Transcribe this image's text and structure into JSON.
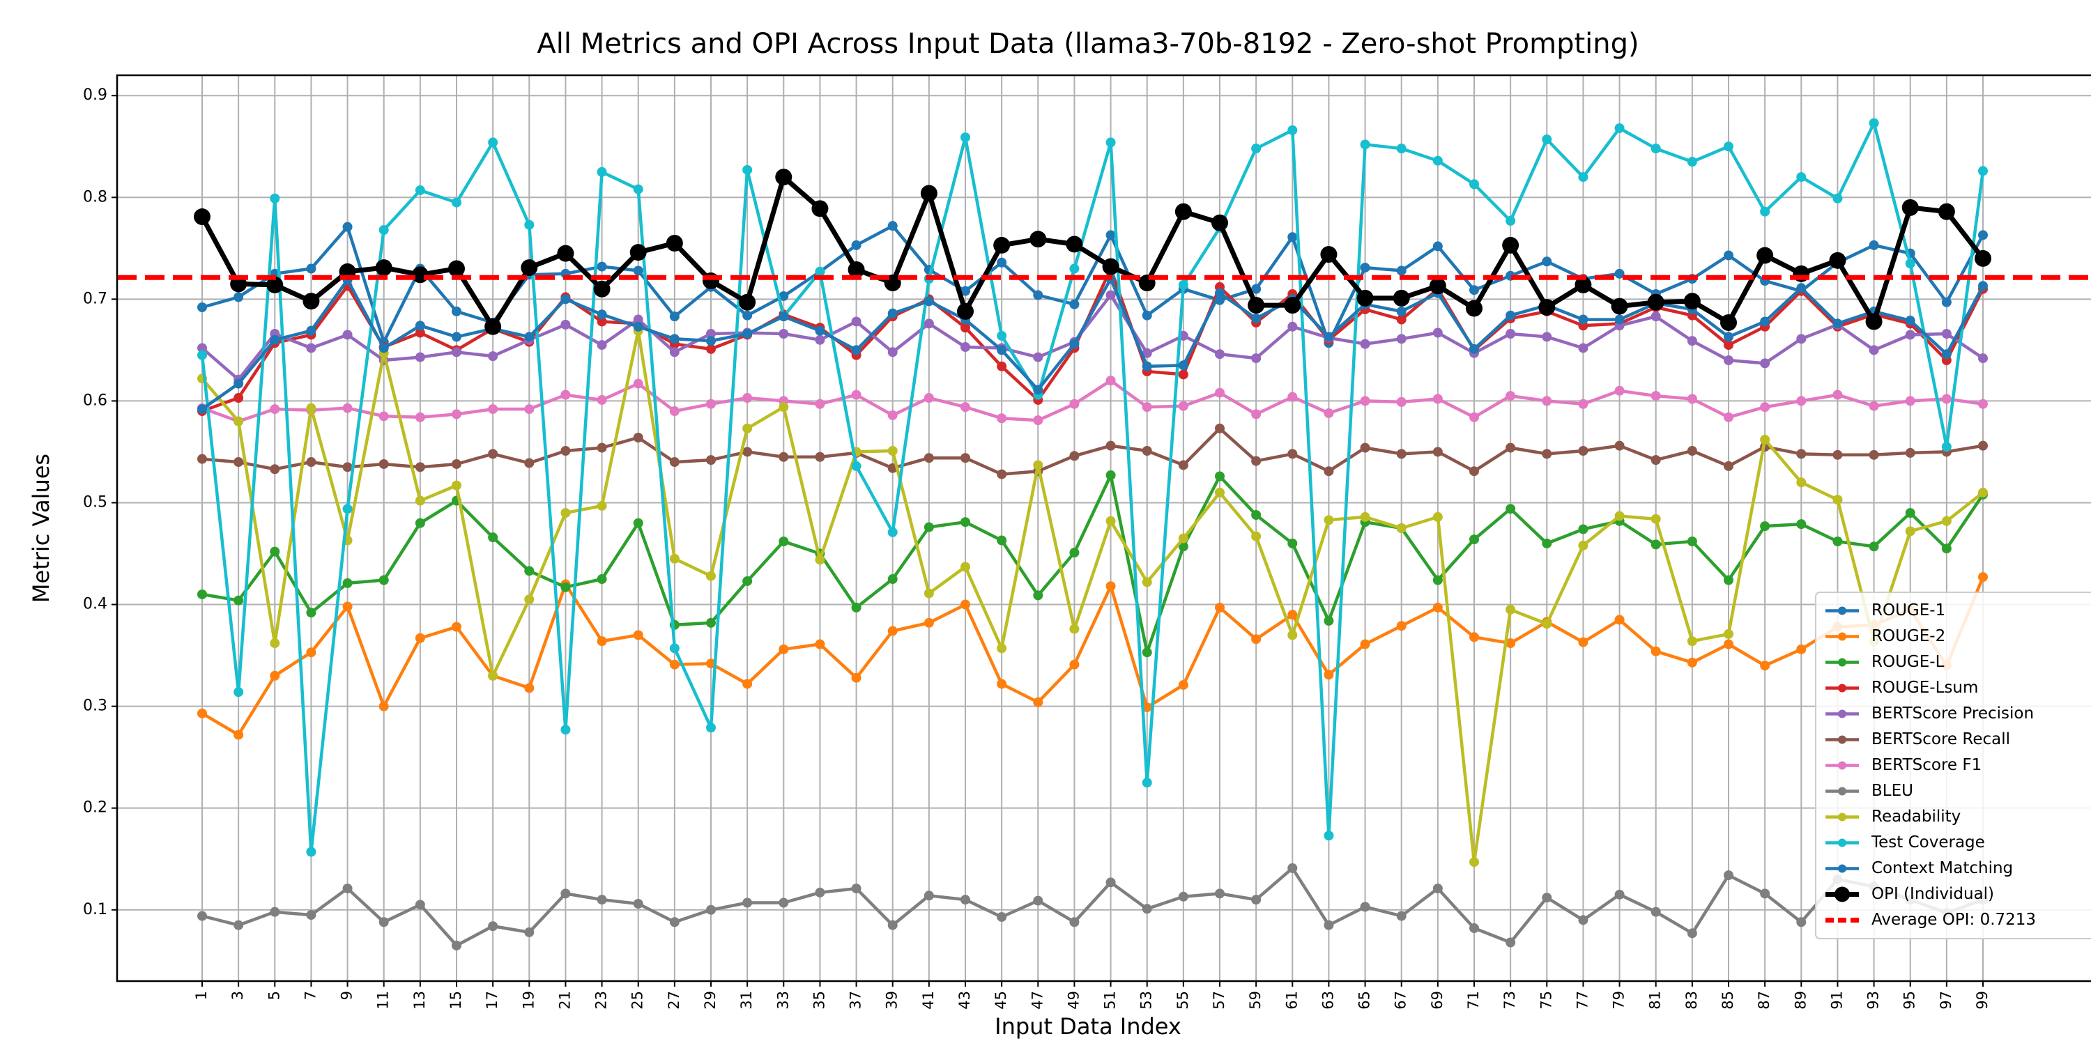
{
  "chart_data": {
    "type": "line",
    "title": "All Metrics and OPI Across Input Data (llama3-70b-8192 - Zero-shot Prompting)",
    "xlabel": "Input Data Index",
    "ylabel": "Metric Values",
    "x": [
      1,
      3,
      5,
      7,
      9,
      11,
      13,
      15,
      17,
      19,
      21,
      23,
      25,
      27,
      29,
      31,
      33,
      35,
      37,
      39,
      41,
      43,
      45,
      47,
      49,
      51,
      53,
      55,
      57,
      59,
      61,
      63,
      65,
      67,
      69,
      71,
      73,
      75,
      77,
      79,
      81,
      83,
      85,
      87,
      89,
      91,
      93,
      95,
      97,
      99
    ],
    "ylim": [
      0.03,
      0.92
    ],
    "yticks": [
      0.1,
      0.2,
      0.3,
      0.4,
      0.5,
      0.6,
      0.7,
      0.8,
      0.9
    ],
    "grid": true,
    "legend_position": "lower-right",
    "series": [
      {
        "name": "ROUGE-1",
        "color": "#1f77b4",
        "values": [
          0.692,
          0.702,
          0.725,
          0.73,
          0.771,
          0.658,
          0.73,
          0.688,
          0.677,
          0.724,
          0.725,
          0.732,
          0.728,
          0.683,
          0.712,
          0.684,
          0.703,
          0.727,
          0.753,
          0.772,
          0.729,
          0.708,
          0.736,
          0.704,
          0.695,
          0.763,
          0.684,
          0.71,
          0.699,
          0.71,
          0.761,
          0.657,
          0.731,
          0.728,
          0.752,
          0.709,
          0.723,
          0.737,
          0.72,
          0.725,
          0.705,
          0.72,
          0.743,
          0.718,
          0.708,
          0.736,
          0.753,
          0.745,
          0.697,
          0.763
        ]
      },
      {
        "name": "ROUGE-2",
        "color": "#ff7f0e",
        "values": [
          0.293,
          0.272,
          0.33,
          0.353,
          0.398,
          0.3,
          0.367,
          0.378,
          0.33,
          0.318,
          0.42,
          0.364,
          0.37,
          0.341,
          0.342,
          0.322,
          0.356,
          0.361,
          0.328,
          0.374,
          0.382,
          0.4,
          0.322,
          0.304,
          0.341,
          0.418,
          0.299,
          0.321,
          0.397,
          0.366,
          0.39,
          0.331,
          0.361,
          0.379,
          0.397,
          0.368,
          0.362,
          0.383,
          0.363,
          0.385,
          0.354,
          0.343,
          0.361,
          0.34,
          0.356,
          0.378,
          0.38,
          0.395,
          0.34,
          0.427
        ]
      },
      {
        "name": "ROUGE-L",
        "color": "#2ca02c",
        "values": [
          0.41,
          0.404,
          0.452,
          0.392,
          0.421,
          0.424,
          0.48,
          0.502,
          0.466,
          0.433,
          0.417,
          0.425,
          0.48,
          0.38,
          0.382,
          0.423,
          0.462,
          0.45,
          0.397,
          0.425,
          0.476,
          0.481,
          0.463,
          0.409,
          0.451,
          0.527,
          0.353,
          0.457,
          0.526,
          0.488,
          0.46,
          0.384,
          0.481,
          0.475,
          0.424,
          0.464,
          0.494,
          0.46,
          0.474,
          0.482,
          0.459,
          0.462,
          0.424,
          0.477,
          0.479,
          0.462,
          0.457,
          0.49,
          0.455,
          0.508
        ]
      },
      {
        "name": "ROUGE-Lsum",
        "color": "#d62728",
        "values": [
          0.59,
          0.603,
          0.657,
          0.665,
          0.713,
          0.653,
          0.667,
          0.65,
          0.671,
          0.658,
          0.702,
          0.678,
          0.676,
          0.656,
          0.651,
          0.665,
          0.685,
          0.672,
          0.645,
          0.683,
          0.7,
          0.672,
          0.634,
          0.601,
          0.652,
          0.73,
          0.629,
          0.626,
          0.712,
          0.677,
          0.705,
          0.66,
          0.69,
          0.68,
          0.71,
          0.65,
          0.681,
          0.688,
          0.674,
          0.676,
          0.692,
          0.684,
          0.655,
          0.673,
          0.708,
          0.673,
          0.685,
          0.676,
          0.64,
          0.71
        ]
      },
      {
        "name": "BERTScore Precision",
        "color": "#9467bd",
        "values": [
          0.652,
          0.621,
          0.666,
          0.652,
          0.665,
          0.64,
          0.643,
          0.648,
          0.644,
          0.66,
          0.675,
          0.655,
          0.68,
          0.648,
          0.666,
          0.667,
          0.666,
          0.66,
          0.678,
          0.648,
          0.676,
          0.653,
          0.652,
          0.643,
          0.658,
          0.704,
          0.647,
          0.664,
          0.646,
          0.642,
          0.673,
          0.662,
          0.656,
          0.661,
          0.667,
          0.647,
          0.666,
          0.663,
          0.652,
          0.674,
          0.683,
          0.659,
          0.64,
          0.637,
          0.661,
          0.675,
          0.65,
          0.665,
          0.666,
          0.642
        ]
      },
      {
        "name": "BERTScore Recall",
        "color": "#8c564b",
        "values": [
          0.543,
          0.54,
          0.533,
          0.54,
          0.535,
          0.538,
          0.535,
          0.538,
          0.548,
          0.539,
          0.551,
          0.554,
          0.564,
          0.54,
          0.542,
          0.55,
          0.545,
          0.545,
          0.549,
          0.534,
          0.544,
          0.544,
          0.528,
          0.531,
          0.546,
          0.556,
          0.551,
          0.537,
          0.573,
          0.541,
          0.548,
          0.531,
          0.554,
          0.548,
          0.55,
          0.531,
          0.554,
          0.548,
          0.551,
          0.556,
          0.542,
          0.551,
          0.536,
          0.555,
          0.548,
          0.547,
          0.547,
          0.549,
          0.55,
          0.556
        ]
      },
      {
        "name": "BERTScore F1",
        "color": "#e377c2",
        "values": [
          0.593,
          0.58,
          0.592,
          0.591,
          0.593,
          0.585,
          0.584,
          0.587,
          0.592,
          0.592,
          0.606,
          0.601,
          0.617,
          0.59,
          0.597,
          0.603,
          0.6,
          0.597,
          0.606,
          0.586,
          0.603,
          0.594,
          0.583,
          0.581,
          0.597,
          0.62,
          0.594,
          0.595,
          0.608,
          0.587,
          0.604,
          0.588,
          0.6,
          0.599,
          0.602,
          0.584,
          0.605,
          0.6,
          0.597,
          0.61,
          0.605,
          0.602,
          0.584,
          0.594,
          0.6,
          0.606,
          0.595,
          0.6,
          0.602,
          0.597
        ]
      },
      {
        "name": "BLEU",
        "color": "#7f7f7f",
        "values": [
          0.094,
          0.085,
          0.098,
          0.095,
          0.121,
          0.088,
          0.105,
          0.065,
          0.084,
          0.078,
          0.116,
          0.11,
          0.106,
          0.088,
          0.1,
          0.107,
          0.107,
          0.117,
          0.121,
          0.085,
          0.114,
          0.11,
          0.093,
          0.109,
          0.088,
          0.127,
          0.101,
          0.113,
          0.116,
          0.11,
          0.141,
          0.085,
          0.103,
          0.094,
          0.121,
          0.082,
          0.068,
          0.112,
          0.09,
          0.115,
          0.098,
          0.077,
          0.134,
          0.116,
          0.088,
          0.13,
          0.123,
          0.11,
          0.097,
          0.11
        ]
      },
      {
        "name": "Readability",
        "color": "#bcbd22",
        "values": [
          0.622,
          0.58,
          0.362,
          0.593,
          0.463,
          0.647,
          0.502,
          0.517,
          0.33,
          0.405,
          0.49,
          0.497,
          0.669,
          0.445,
          0.428,
          0.573,
          0.594,
          0.444,
          0.55,
          0.551,
          0.411,
          0.437,
          0.357,
          0.537,
          0.376,
          0.482,
          0.422,
          0.465,
          0.51,
          0.467,
          0.37,
          0.483,
          0.486,
          0.475,
          0.486,
          0.147,
          0.395,
          0.381,
          0.458,
          0.487,
          0.484,
          0.364,
          0.371,
          0.562,
          0.52,
          0.503,
          0.364,
          0.472,
          0.482,
          0.51
        ]
      },
      {
        "name": "Test Coverage",
        "color": "#17becf",
        "values": [
          0.645,
          0.314,
          0.799,
          0.157,
          0.494,
          0.768,
          0.807,
          0.795,
          0.854,
          0.773,
          0.277,
          0.825,
          0.808,
          0.357,
          0.279,
          0.827,
          0.683,
          0.727,
          0.536,
          0.471,
          0.72,
          0.859,
          0.664,
          0.606,
          0.73,
          0.854,
          0.225,
          0.714,
          0.77,
          0.848,
          0.866,
          0.173,
          0.852,
          0.848,
          0.836,
          0.813,
          0.777,
          0.857,
          0.82,
          0.868,
          0.848,
          0.835,
          0.85,
          0.786,
          0.82,
          0.799,
          0.873,
          0.735,
          0.555,
          0.826
        ]
      },
      {
        "name": "Context Matching",
        "color": "#1f77b4",
        "values": [
          0.592,
          0.617,
          0.66,
          0.669,
          0.719,
          0.652,
          0.674,
          0.663,
          0.671,
          0.663,
          0.7,
          0.685,
          0.673,
          0.661,
          0.659,
          0.666,
          0.683,
          0.669,
          0.65,
          0.686,
          0.698,
          0.68,
          0.65,
          0.611,
          0.656,
          0.72,
          0.634,
          0.635,
          0.706,
          0.681,
          0.7,
          0.663,
          0.695,
          0.688,
          0.706,
          0.651,
          0.684,
          0.694,
          0.68,
          0.68,
          0.696,
          0.69,
          0.663,
          0.678,
          0.711,
          0.676,
          0.688,
          0.679,
          0.646,
          0.713
        ]
      },
      {
        "name": "OPI (Individual)",
        "color": "#000000",
        "values": [
          0.781,
          0.715,
          0.714,
          0.698,
          0.727,
          0.731,
          0.724,
          0.73,
          0.673,
          0.731,
          0.745,
          0.71,
          0.746,
          0.755,
          0.718,
          0.697,
          0.82,
          0.789,
          0.729,
          0.716,
          0.804,
          0.688,
          0.753,
          0.759,
          0.754,
          0.732,
          0.716,
          0.786,
          0.775,
          0.694,
          0.694,
          0.744,
          0.701,
          0.701,
          0.713,
          0.691,
          0.753,
          0.692,
          0.714,
          0.693,
          0.697,
          0.698,
          0.677,
          0.743,
          0.725,
          0.738,
          0.678,
          0.79,
          0.786,
          0.74
        ]
      }
    ],
    "reference_line": {
      "name": "Average OPI: 0.7213",
      "value": 0.7213,
      "color": "#ff0000"
    }
  }
}
